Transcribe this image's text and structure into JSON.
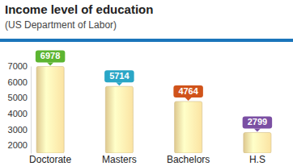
{
  "chart_data": {
    "type": "bar",
    "title": "Income level of education",
    "subtitle": "(US Department of Labor)",
    "categories": [
      "Doctorate",
      "Masters",
      "Bachelors",
      "H.S"
    ],
    "values": [
      6978,
      5714,
      4764,
      2799
    ],
    "color": "#fbe3a2",
    "colors": [
      "#5cb531",
      "#2aa6c6",
      "#d0531a",
      "#7b4fa3"
    ],
    "ylim": [
      1500,
      7000
    ],
    "yticks": [
      2000,
      3000,
      4000,
      5000,
      6000,
      7000
    ],
    "grid": false,
    "data_labels": true
  }
}
